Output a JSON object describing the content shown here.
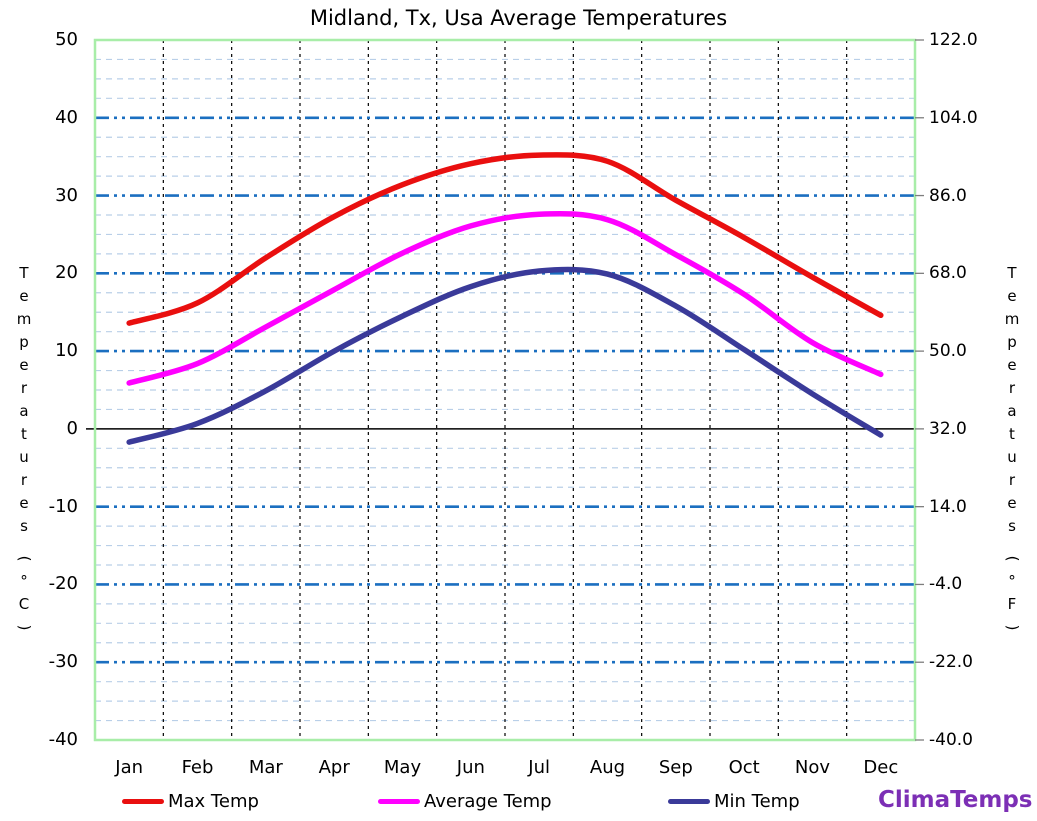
{
  "title": "Midland, Tx, Usa Average Temperatures",
  "watermark": "ClimaTemps",
  "watermark_color": "#7c2fb5",
  "chart_data": {
    "type": "line",
    "title": "Midland, Tx, Usa Average Temperatures",
    "categories": [
      "Jan",
      "Feb",
      "Mar",
      "Apr",
      "May",
      "Jun",
      "Jul",
      "Aug",
      "Sep",
      "Oct",
      "Nov",
      "Dec"
    ],
    "series": [
      {
        "name": "Max Temp",
        "color": "#e90f0f",
        "values": [
          13.6,
          16.2,
          22.0,
          27.3,
          31.4,
          34.1,
          35.2,
          34.4,
          29.4,
          24.6,
          19.5,
          14.6
        ]
      },
      {
        "name": "Average Temp",
        "color": "#ff00ff",
        "values": [
          5.9,
          8.4,
          13.1,
          17.9,
          22.6,
          26.1,
          27.6,
          26.9,
          22.4,
          17.3,
          11.1,
          7.0
        ]
      },
      {
        "name": "Min Temp",
        "color": "#3a3a99",
        "values": [
          -1.7,
          0.7,
          4.9,
          10.0,
          14.5,
          18.3,
          20.3,
          19.9,
          15.8,
          10.2,
          4.5,
          -0.8
        ]
      }
    ],
    "y_axis_left": {
      "label": "Temperatures (°C)",
      "ticks": [
        "50",
        "40",
        "30",
        "20",
        "10",
        "0",
        "-10",
        "-20",
        "-30",
        "-40"
      ],
      "tick_values": [
        50,
        40,
        30,
        20,
        10,
        0,
        -10,
        -20,
        -30,
        -40
      ],
      "range": [
        -40,
        50
      ]
    },
    "y_axis_right": {
      "label": "Temperatures (°F)",
      "ticks": [
        "122.0",
        "104.0",
        "86.0",
        "68.0",
        "50.0",
        "32.0",
        "14.0",
        "-4.0",
        "-22.0",
        "-40.0"
      ]
    },
    "grid": {
      "major_step_c": 10,
      "minor_step_c": 2.5,
      "major_color": "#1b6fc0",
      "minor_color": "#b9cfe8",
      "vertical_color": "#000000",
      "zero_line_color": "#000000",
      "border_color": "#a8eda8",
      "grid_on": true
    },
    "legend_position": "bottom"
  }
}
